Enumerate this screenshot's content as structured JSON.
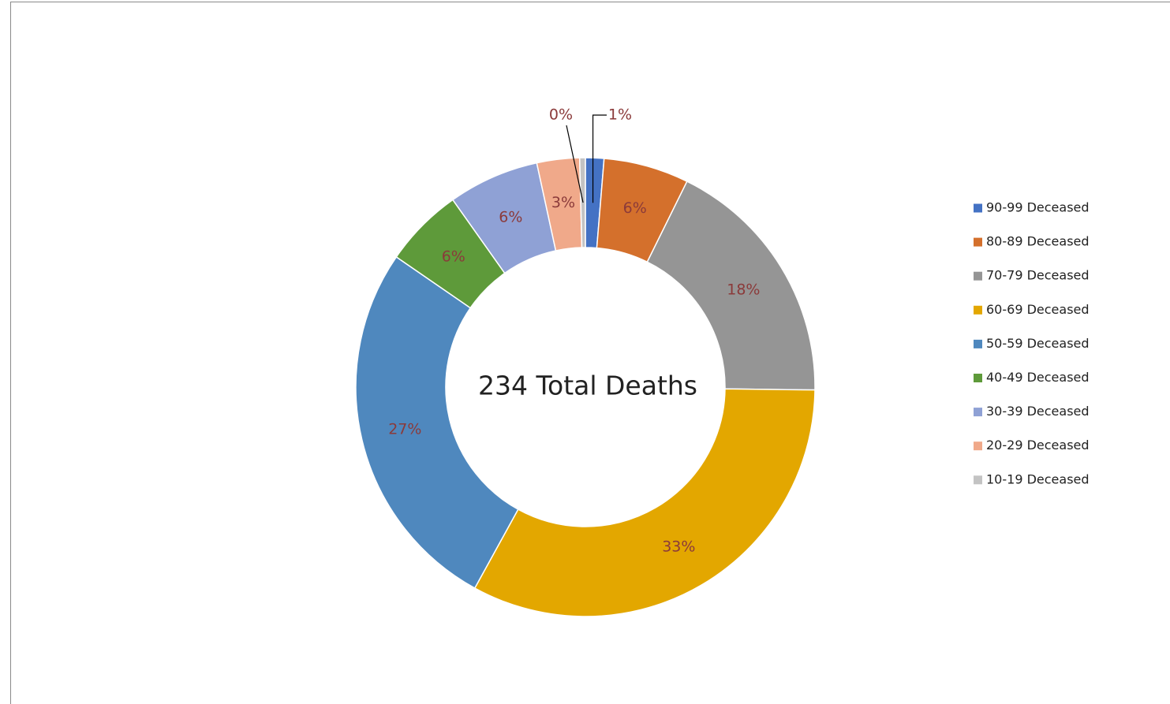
{
  "chart_data": {
    "type": "donut",
    "title": "234 Total Deaths",
    "categories": [
      "90-99 Deceased",
      "80-89 Deceased",
      "70-79 Deceased",
      "60-69 Deceased",
      "50-59 Deceased",
      "40-49 Deceased",
      "30-39 Deceased",
      "20-29 Deceased",
      "10-19 Deceased"
    ],
    "values": [
      1.3,
      6.0,
      17.9,
      32.8,
      26.6,
      5.6,
      6.4,
      3.0,
      0.4
    ],
    "value_labels": [
      "1%",
      "6%",
      "18%",
      "33%",
      "27%",
      "6%",
      "6%",
      "3%",
      "0%"
    ],
    "colors": [
      "#4472c4",
      "#d4702c",
      "#959595",
      "#e3a700",
      "#4f88be",
      "#5e9a3a",
      "#8fa1d5",
      "#f0a98a",
      "#c3c3c3"
    ],
    "legend": "right"
  }
}
